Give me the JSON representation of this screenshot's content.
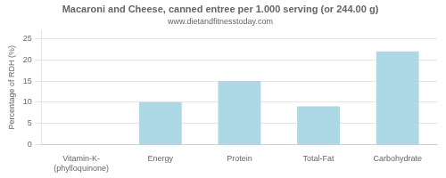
{
  "chart_data": {
    "type": "bar",
    "title": "Macaroni and Cheese, canned entree per 1.000 serving (or 244.00 g)",
    "subtitle": "www.dietandfitnesstoday.com",
    "categories": [
      "Vitamin-K-(phylloquinone)",
      "Energy",
      "Protein",
      "Total-Fat",
      "Carbohydrate"
    ],
    "values": [
      0,
      10,
      15,
      9,
      22
    ],
    "color": "#add8e6",
    "ylabel": "Percentage of RDH (%)",
    "ylim": [
      0,
      27
    ],
    "yticks": [
      0,
      5,
      10,
      15,
      20,
      25
    ],
    "grid": true
  }
}
